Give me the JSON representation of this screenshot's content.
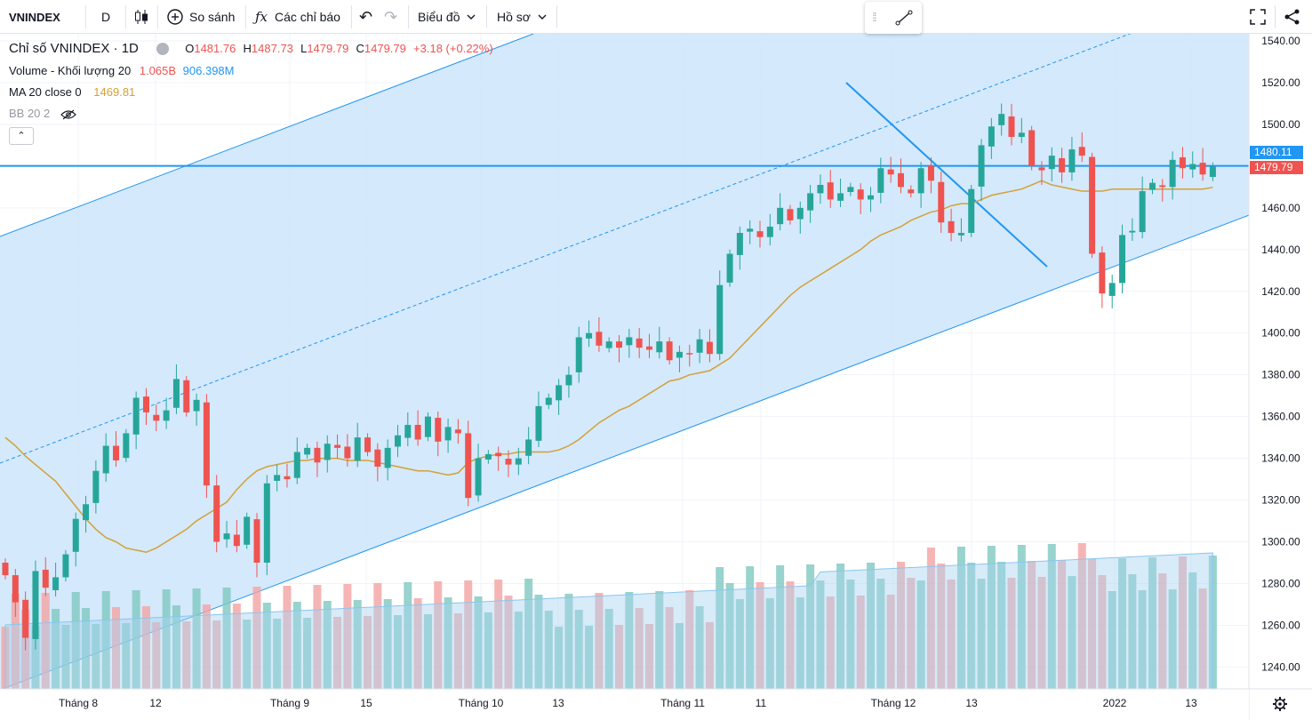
{
  "toolbar": {
    "symbol": "VNINDEX",
    "interval": "D",
    "compare_label": "So sánh",
    "indicators_label": "Các chỉ báo",
    "chart_menu_label": "Biểu đồ",
    "profile_menu_label": "Hồ sơ"
  },
  "legend": {
    "title": "Chỉ số VNINDEX · 1D",
    "o_label": "O",
    "o_value": "1481.76",
    "h_label": "H",
    "h_value": "1487.73",
    "l_label": "L",
    "l_value": "1479.79",
    "c_label": "C",
    "c_value": "1479.79",
    "change": "+3.18 (+0.22%)",
    "volume_label": "Volume - Khối lượng 20",
    "volume_value1": "1.065B",
    "volume_value2": "906.398M",
    "ma_label": "MA 20 close 0",
    "ma_value": "1469.81",
    "bb_label": "BB 20 2"
  },
  "badges": {
    "line_price": "1480.11",
    "last_price": "1479.79"
  },
  "colors": {
    "up": "#26a69a",
    "down": "#ef5350",
    "ma": "#d4a038",
    "channel": "#2196f3",
    "fill": "#cfe7fb"
  },
  "chart_data": {
    "type": "candlestick",
    "ylim": [
      1230,
      1545
    ],
    "y_ticks": [
      "1540.00",
      "1520.00",
      "1500.00",
      "1480.00",
      "1460.00",
      "1440.00",
      "1420.00",
      "1400.00",
      "1380.00",
      "1360.00",
      "1340.00",
      "1320.00",
      "1300.00",
      "1280.00",
      "1260.00",
      "1240.00"
    ],
    "x_ticks": [
      "Tháng 8",
      "12",
      "Tháng 9",
      "15",
      "Tháng 10",
      "13",
      "Tháng 11",
      "11",
      "Tháng 12",
      "13",
      "2022",
      "13"
    ],
    "closes": [
      1284,
      1271,
      1254,
      1286,
      1278,
      1283,
      1294,
      1311,
      1318,
      1334,
      1346,
      1339,
      1352,
      1369,
      1362,
      1358,
      1363,
      1378,
      1362,
      1368,
      1327,
      1300,
      1304,
      1298,
      1312,
      1290,
      1328,
      1332,
      1330,
      1343,
      1345,
      1338,
      1347,
      1345,
      1340,
      1350,
      1343,
      1336,
      1345,
      1351,
      1356,
      1349,
      1360,
      1348,
      1355,
      1352,
      1321,
      1340,
      1342,
      1341,
      1337,
      1340,
      1349,
      1365,
      1369,
      1375,
      1380,
      1398,
      1400,
      1394,
      1396,
      1393,
      1398,
      1393,
      1392,
      1396,
      1387,
      1391,
      1390,
      1397,
      1390,
      1423,
      1438,
      1448,
      1450,
      1446,
      1451,
      1460,
      1454,
      1460,
      1467,
      1471,
      1464,
      1467,
      1470,
      1464,
      1466,
      1479,
      1476,
      1470,
      1467,
      1479,
      1473,
      1453,
      1448,
      1448,
      1469,
      1490,
      1499,
      1505,
      1494,
      1496,
      1480,
      1478,
      1485,
      1477,
      1488,
      1485,
      1438,
      1419,
      1424,
      1447,
      1449,
      1468,
      1472,
      1470,
      1483,
      1479,
      1481,
      1476,
      1479.79
    ],
    "ma20": [
      1350,
      1346,
      1341,
      1337,
      1333,
      1329,
      1323,
      1317,
      1311,
      1306,
      1302,
      1300,
      1297,
      1296,
      1295,
      1297,
      1300,
      1303,
      1306,
      1310,
      1313,
      1316,
      1319,
      1325,
      1330,
      1334,
      1336,
      1337,
      1338,
      1339,
      1339,
      1340,
      1340,
      1340,
      1339,
      1339,
      1339,
      1338,
      1337,
      1336,
      1335,
      1334,
      1334,
      1333,
      1332,
      1333,
      1338,
      1340,
      1341,
      1342,
      1342,
      1343,
      1343,
      1343,
      1343,
      1344,
      1346,
      1349,
      1353,
      1357,
      1360,
      1363,
      1365,
      1368,
      1371,
      1374,
      1377,
      1378,
      1380,
      1381,
      1382,
      1385,
      1388,
      1393,
      1398,
      1403,
      1408,
      1413,
      1418,
      1422,
      1425,
      1428,
      1431,
      1434,
      1437,
      1440,
      1444,
      1447,
      1449,
      1451,
      1454,
      1456,
      1458,
      1459,
      1461,
      1462,
      1462,
      1464,
      1466,
      1467,
      1468,
      1469,
      1471,
      1473,
      1471,
      1470,
      1469,
      1468,
      1468,
      1468,
      1469,
      1469,
      1469,
      1469,
      1469,
      1469,
      1469,
      1469,
      1469,
      1469,
      1469.81
    ]
  }
}
